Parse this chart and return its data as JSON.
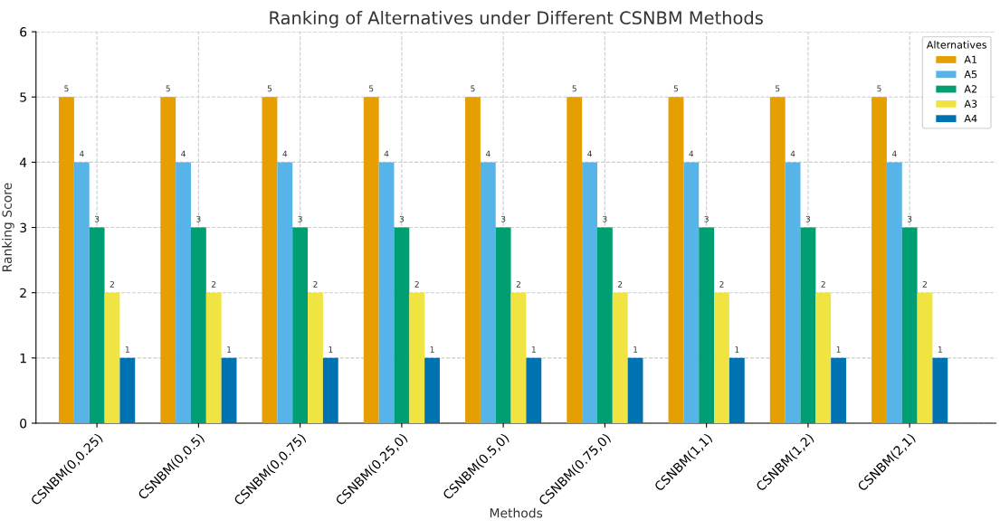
{
  "chart_data": {
    "type": "bar",
    "title": "Ranking of Alternatives under Different CSNBM Methods",
    "xlabel": "Methods",
    "ylabel": "Ranking Score",
    "legend_title": "Alternatives",
    "categories": [
      "CSNBM(0,0.25)",
      "CSNBM(0,0.5)",
      "CSNBM(0,0.75)",
      "CSNBM(0.25,0)",
      "CSNBM(0.5,0)",
      "CSNBM(0.75,0)",
      "CSNBM(1,1)",
      "CSNBM(1,2)",
      "CSNBM(2,1)"
    ],
    "series": [
      {
        "name": "A1",
        "color": "#e69f00",
        "values": [
          5,
          5,
          5,
          5,
          5,
          5,
          5,
          5,
          5
        ]
      },
      {
        "name": "A5",
        "color": "#56b4e9",
        "values": [
          4,
          4,
          4,
          4,
          4,
          4,
          4,
          4,
          4
        ]
      },
      {
        "name": "A2",
        "color": "#009e73",
        "values": [
          3,
          3,
          3,
          3,
          3,
          3,
          3,
          3,
          3
        ]
      },
      {
        "name": "A3",
        "color": "#f0e442",
        "values": [
          2,
          2,
          2,
          2,
          2,
          2,
          2,
          2,
          2
        ]
      },
      {
        "name": "A4",
        "color": "#0072b2",
        "values": [
          1,
          1,
          1,
          1,
          1,
          1,
          1,
          1,
          1
        ]
      }
    ],
    "ylim": [
      0,
      6
    ],
    "yticks": [
      0,
      1,
      2,
      3,
      4,
      5,
      6
    ],
    "grid": true,
    "legend": "top right",
    "data_labels": true
  }
}
